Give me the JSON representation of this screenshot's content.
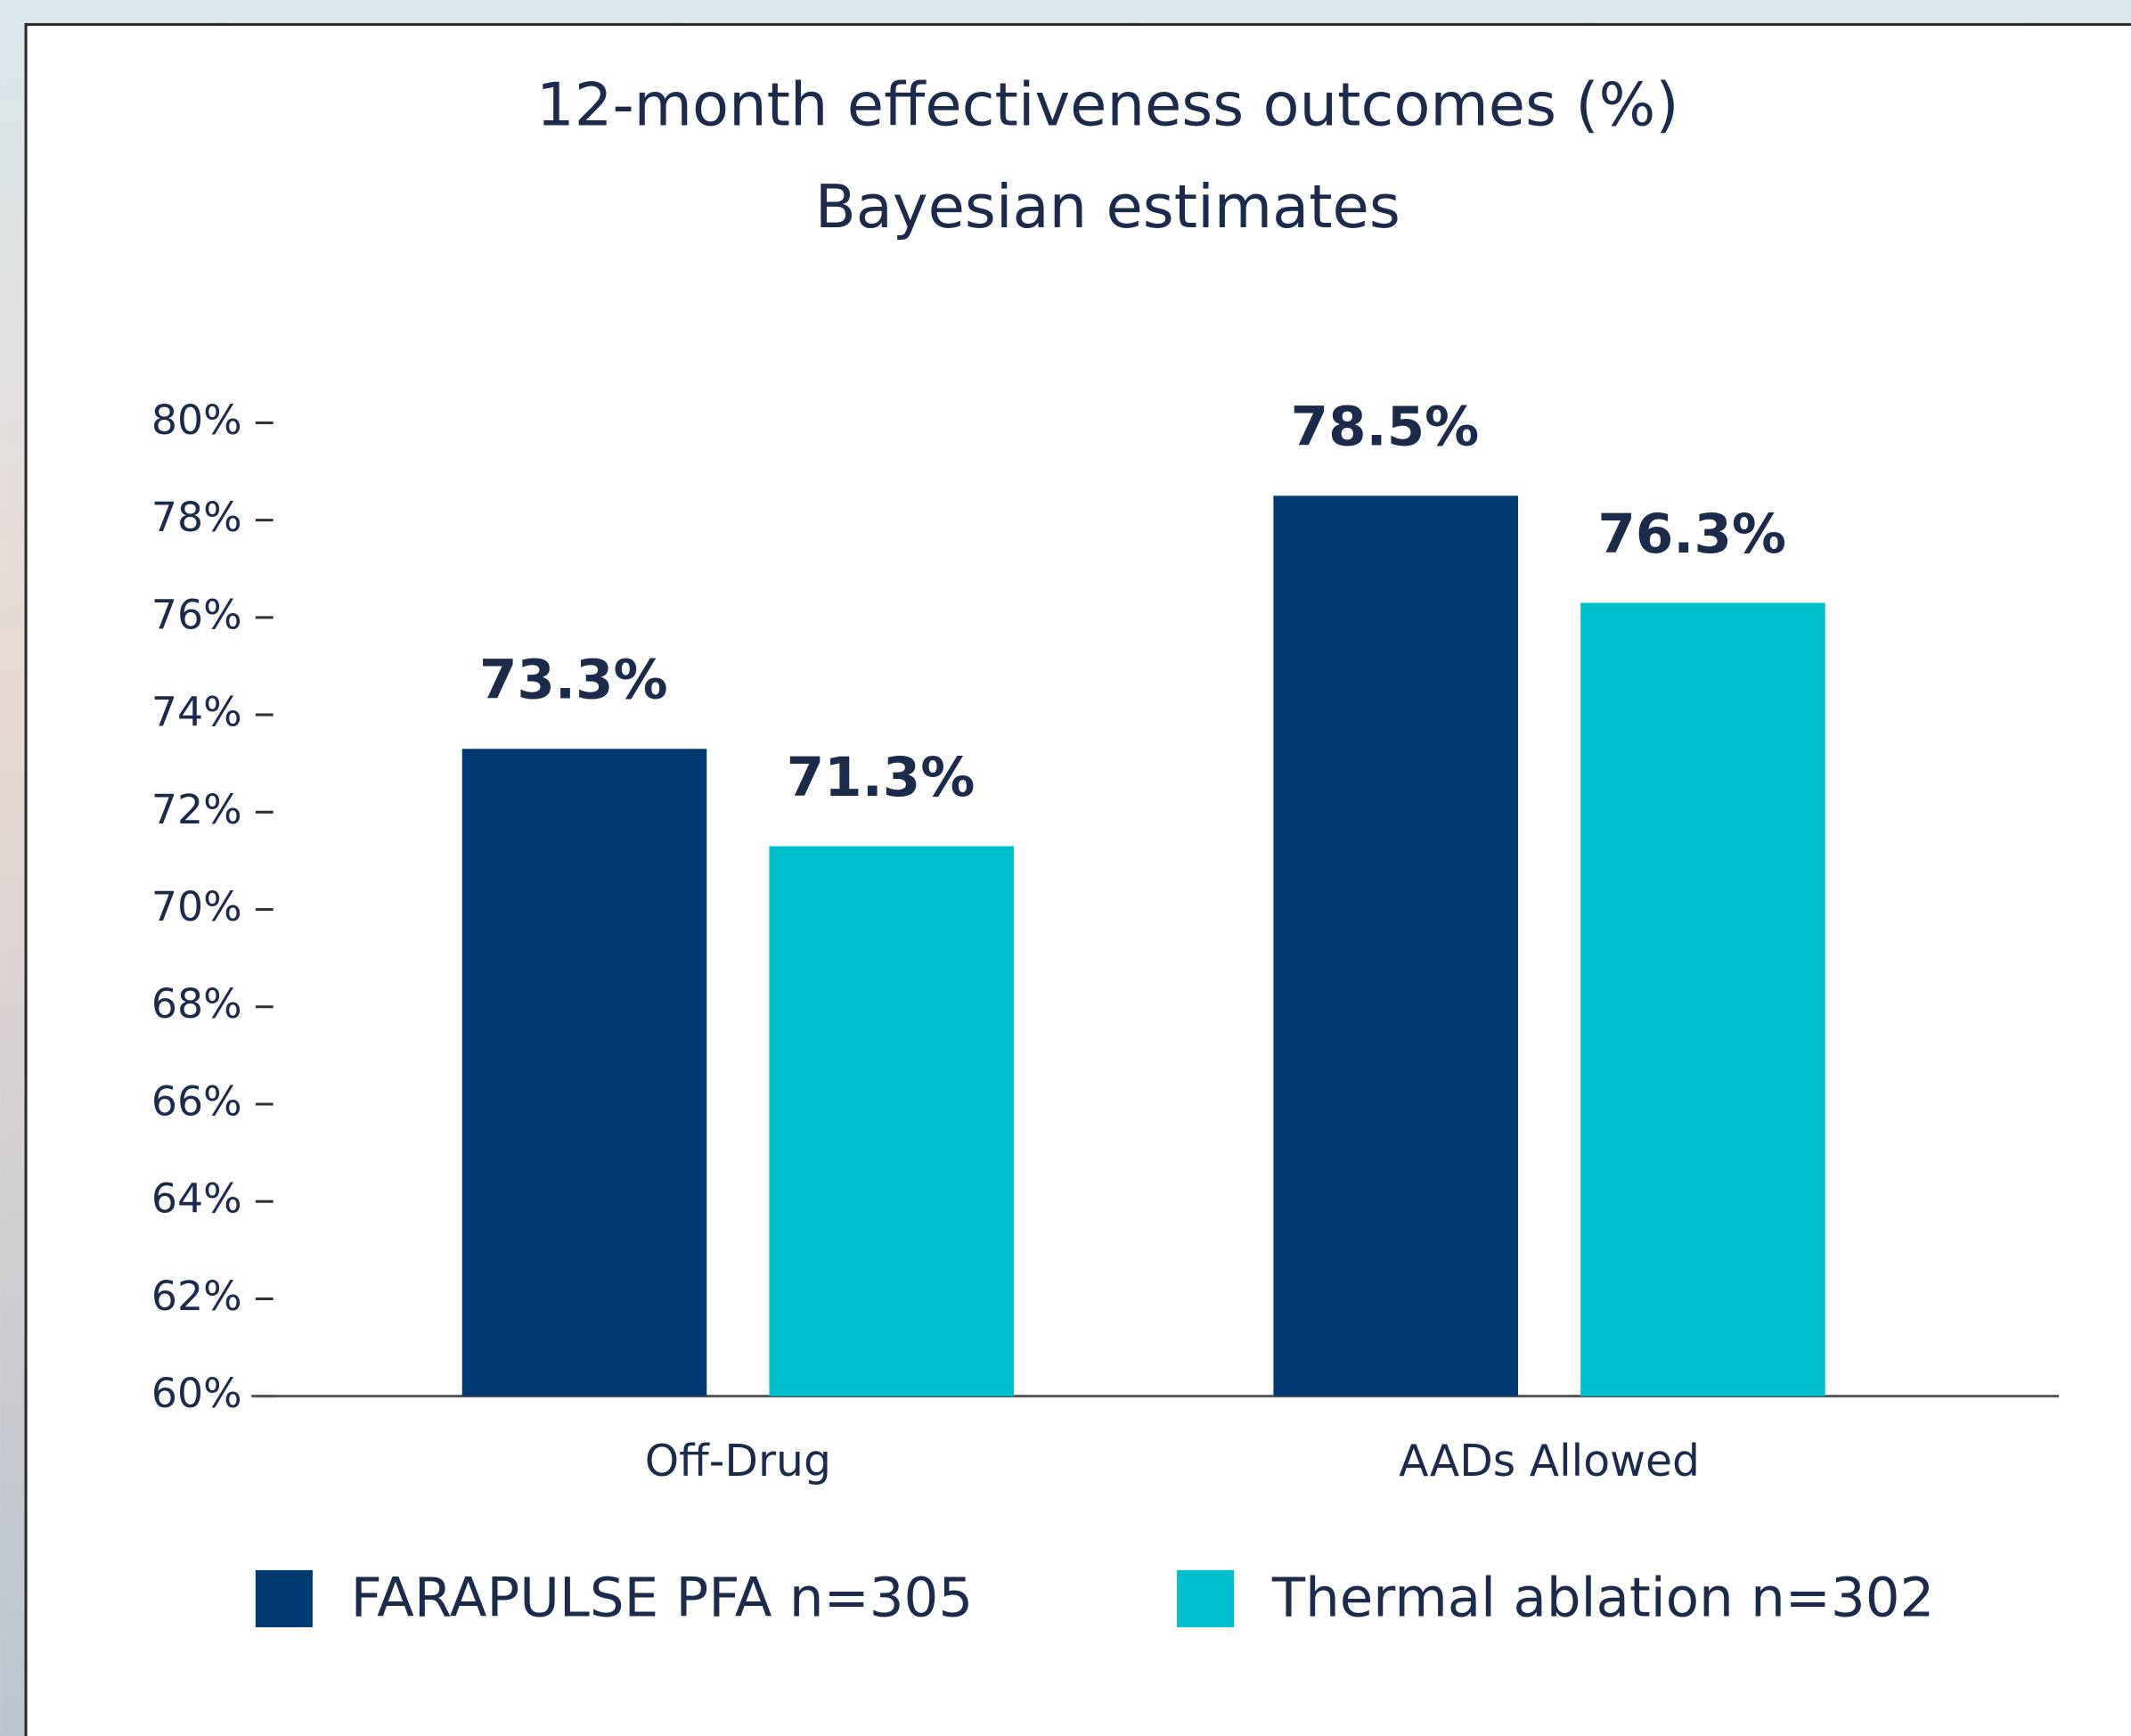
{
  "chart_data": {
    "type": "bar",
    "title": "12-month effectiveness outcomes (%)",
    "subtitle": "Bayesian estimates",
    "categories": [
      "Off-Drug",
      "AADs Allowed"
    ],
    "series": [
      {
        "name": "FARAPULSE PFA n=305",
        "color": "#003a70",
        "values": [
          73.3,
          78.5
        ],
        "value_labels": [
          "73.3%",
          "78.5%"
        ]
      },
      {
        "name": "Thermal ablation n=302",
        "color": "#00bfcc",
        "values": [
          71.3,
          76.3
        ],
        "value_labels": [
          "71.3%",
          "76.3%"
        ]
      }
    ],
    "ylim": [
      60,
      80
    ],
    "yticks": [
      {
        "value": 60,
        "label": "60%"
      },
      {
        "value": 62,
        "label": "62%"
      },
      {
        "value": 64,
        "label": "64%"
      },
      {
        "value": 66,
        "label": "66%"
      },
      {
        "value": 68,
        "label": "68%"
      },
      {
        "value": 70,
        "label": "70%"
      },
      {
        "value": 72,
        "label": "72%"
      },
      {
        "value": 74,
        "label": "74%"
      },
      {
        "value": 76,
        "label": "76%"
      },
      {
        "value": 78,
        "label": "78%"
      },
      {
        "value": 80,
        "label": "80%"
      }
    ],
    "legend": "bottom"
  }
}
